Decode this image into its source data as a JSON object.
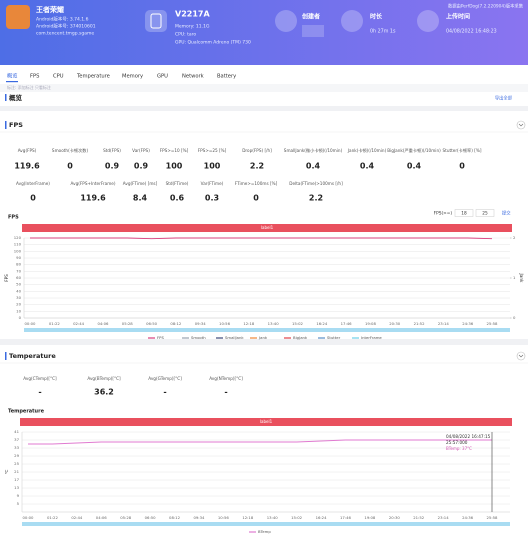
{
  "header": {
    "app_name": "王者荣耀",
    "app_version": "Android版本号: 3.74.1.6",
    "app_build": "Android版本号: 374010601",
    "package": "com.tencent.tmgp.sgame",
    "device": "V2217A",
    "memory": "Memory: 11.1G",
    "cpu": "CPU: taro",
    "gpu": "GPU: Qualcomm Adreno (TM) 730",
    "creator_label": "创建者",
    "duration_label": "时长",
    "duration": "0h 27m 1s",
    "upload_label": "上传时间",
    "upload_time": "04/08/2022 16:48:23",
    "collector_note": "数据由PerfDog(7.2.220904)版本采集"
  },
  "tabs": [
    "概览",
    "FPS",
    "CPU",
    "Temperature",
    "Memory",
    "GPU",
    "Network",
    "Battery"
  ],
  "tag_bar": "标注: 添加标注  只看标注",
  "overview": {
    "title": "概览",
    "export": "导出全部"
  },
  "fps_section": {
    "title": "FPS",
    "metrics": [
      {
        "label": "Avg(FPS)",
        "value": 119.6
      },
      {
        "label": "Smooth(卡顿次数)",
        "value": 0
      },
      {
        "label": "Std(FPS)",
        "value": 0.9
      },
      {
        "label": "Var(FPS)",
        "value": 0.9
      },
      {
        "label": "FPS>=10 [%]",
        "value": 100
      },
      {
        "label": "FPS>=25 [%]",
        "value": 100
      },
      {
        "label": "Drop(FPS) [/h]",
        "value": 2.2
      },
      {
        "label": "SmallJank(微小卡顿)(/10min)",
        "value": 0.4
      },
      {
        "label": "Jank(卡顿)(/10min)",
        "value": 0.4
      },
      {
        "label": "BigJank(严重卡顿)(/10min)",
        "value": 0.4
      },
      {
        "label": "Stutter(卡顿率) [%]",
        "value": 0
      }
    ],
    "metrics2": [
      {
        "label": "Avg(InterFrame)",
        "value": 0
      },
      {
        "label": "Avg(FPS+InterFrame)",
        "value": 119.6
      },
      {
        "label": "Avg(FTime) [ms]",
        "value": 8.4
      },
      {
        "label": "Std(FTime)",
        "value": 0.6
      },
      {
        "label": "Var(FTime)",
        "value": 0.3
      },
      {
        "label": "FTime>=100ms [%]",
        "value": 0
      },
      {
        "label": "Delta(FTime)>100ms [/h]",
        "value": 2.2
      }
    ],
    "chart": {
      "type": "line",
      "title": "FPS",
      "threshold_label": "FPS(>=)",
      "thresholds": [
        18,
        25
      ],
      "submit": "提交",
      "label_bar": "label1",
      "y_label": "FPS",
      "y2_label": "Jank",
      "categories": [
        "00:00",
        "01:22",
        "02:44",
        "04:06",
        "05:28",
        "06:50",
        "08:12",
        "09:34",
        "10:56",
        "12:18",
        "13:40",
        "15:02",
        "16:24",
        "17:46",
        "19:08",
        "20:30",
        "21:52",
        "23:14",
        "24:36",
        "25:58"
      ],
      "ylim": [
        0,
        120
      ],
      "yticks": [
        0,
        10,
        20,
        30,
        40,
        50,
        60,
        70,
        80,
        90,
        100,
        110,
        120
      ],
      "y2lim": [
        0,
        2
      ],
      "y2ticks": [
        0,
        1,
        2
      ],
      "grid": true,
      "series": [
        {
          "name": "FPS",
          "color": "#d9407f",
          "values": [
            120,
            120,
            120,
            120,
            120,
            119,
            120,
            120,
            120,
            120,
            120,
            120,
            120,
            120,
            120,
            120,
            120,
            120,
            120,
            119
          ]
        },
        {
          "name": "Smooth",
          "color": "#9aa4b0"
        },
        {
          "name": "SmallJank",
          "color": "#3d4a7a"
        },
        {
          "name": "Jank",
          "color": "#f0883a"
        },
        {
          "name": "BigJank",
          "color": "#e0444a"
        },
        {
          "name": "Stutter",
          "color": "#5a8fc8"
        },
        {
          "name": "InterFrame",
          "color": "#6fd0e8"
        }
      ]
    }
  },
  "temperature_section": {
    "title": "Temperature",
    "metrics": [
      {
        "label": "Avg(CTemp)[°C]",
        "value": "-"
      },
      {
        "label": "Avg(BTemp)[°C]",
        "value": 36.2
      },
      {
        "label": "Avg(GTemp)[°C]",
        "value": "-"
      },
      {
        "label": "Avg(NTemp)[°C]",
        "value": "-"
      }
    ],
    "chart": {
      "type": "line",
      "title": "Temperature",
      "label_bar": "label1",
      "y_label": "℃",
      "categories": [
        "00:00",
        "01:22",
        "02:44",
        "04:06",
        "05:28",
        "06:50",
        "08:12",
        "09:34",
        "10:56",
        "12:18",
        "13:40",
        "15:02",
        "16:24",
        "17:46",
        "19:08",
        "20:30",
        "21:52",
        "23:14",
        "24:36",
        "25:58"
      ],
      "ylim": [
        1,
        41
      ],
      "yticks": [
        5,
        9,
        13,
        17,
        21,
        25,
        29,
        33,
        37,
        41
      ],
      "grid": true,
      "series": [
        {
          "name": "BTemp",
          "color": "#e07ad0",
          "values": [
            35,
            35,
            35.5,
            36,
            36,
            36,
            36,
            36,
            36,
            36,
            36,
            36,
            36.5,
            37,
            37,
            37,
            37,
            37,
            37,
            37
          ]
        }
      ],
      "tooltip": {
        "time": "04/08/2022 16:47:15",
        "offset": "25:57:000",
        "text": "BTemp: 37°C"
      }
    }
  }
}
